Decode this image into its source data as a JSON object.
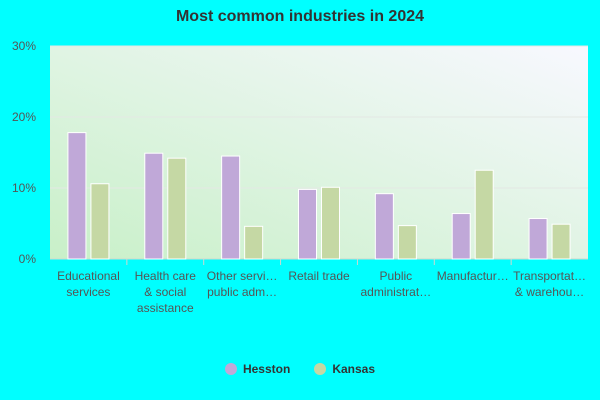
{
  "chart_data": {
    "type": "bar",
    "title": "Most common industries in 2024",
    "categories": [
      [
        "Educational",
        "services"
      ],
      [
        "Health care",
        "& social",
        "assistance"
      ],
      [
        "Other servi…",
        "public adm…"
      ],
      [
        "Retail trade"
      ],
      [
        "Public",
        "administrat…"
      ],
      [
        "Manufactur…"
      ],
      [
        "Transportat…",
        "& warehou…"
      ]
    ],
    "series": [
      {
        "name": "Hesston",
        "color": "#c0a8d8",
        "values": [
          17.8,
          14.9,
          14.5,
          9.8,
          9.2,
          6.4,
          5.7
        ]
      },
      {
        "name": "Kansas",
        "color": "#c5d8a4",
        "values": [
          10.6,
          14.2,
          4.6,
          10.1,
          4.7,
          12.5,
          4.9
        ]
      }
    ],
    "yticks": [
      "0%",
      "10%",
      "20%",
      "30%"
    ],
    "ylim": [
      0,
      30
    ],
    "xlabel": "",
    "ylabel": "",
    "grid": true,
    "legend_position": "bottom"
  }
}
